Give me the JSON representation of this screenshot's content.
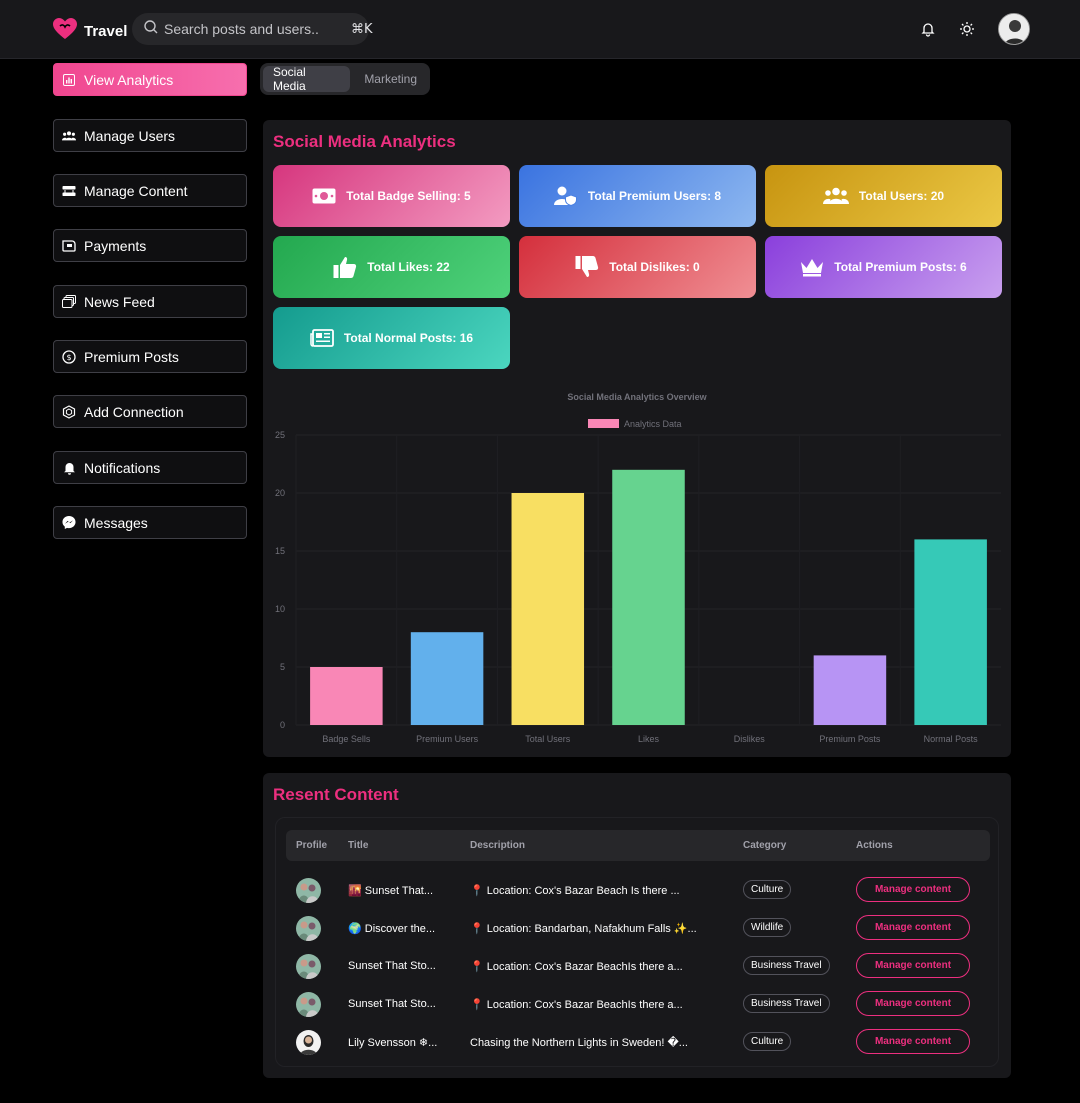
{
  "header": {
    "brand": "Travel",
    "search_placeholder": "Search posts and users..",
    "shortcut": "⌘K"
  },
  "sidebar": {
    "items": [
      {
        "label": "View Analytics",
        "icon": "chart-icon"
      },
      {
        "label": "Manage Users",
        "icon": "users-icon"
      },
      {
        "label": "Manage Content",
        "icon": "content-icon"
      },
      {
        "label": "Payments",
        "icon": "payments-icon"
      },
      {
        "label": "News Feed",
        "icon": "news-feed-icon"
      },
      {
        "label": "Premium Posts",
        "icon": "premium-icon"
      },
      {
        "label": "Add Connection",
        "icon": "connection-icon"
      },
      {
        "label": "Notifications",
        "icon": "bell-icon"
      },
      {
        "label": "Messages",
        "icon": "messenger-icon"
      }
    ]
  },
  "tabs": [
    "Social Media",
    "Marketing"
  ],
  "analytics": {
    "title": "Social Media Analytics",
    "stats": [
      {
        "label": "Total Badge Selling: 5",
        "icon": "money-icon"
      },
      {
        "label": "Total Premium Users: 8",
        "icon": "premium-user-icon"
      },
      {
        "label": "Total Users: 20",
        "icon": "users-icon"
      },
      {
        "label": "Total Likes: 22",
        "icon": "thumbs-up-icon"
      },
      {
        "label": "Total Dislikes: 0",
        "icon": "thumbs-down-icon"
      },
      {
        "label": "Total Premium Posts: 6",
        "icon": "crown-icon"
      },
      {
        "label": "Total Normal Posts: 16",
        "icon": "newspaper-icon"
      }
    ]
  },
  "chart_data": {
    "type": "bar",
    "title": "Social Media Analytics Overview",
    "legend": "Analytics Data",
    "categories": [
      "Badge Sells",
      "Premium Users",
      "Total Users",
      "Likes",
      "Dislikes",
      "Premium Posts",
      "Normal Posts"
    ],
    "values": [
      5,
      8,
      20,
      22,
      0,
      6,
      16
    ],
    "colors": [
      "#f987b6",
      "#62b0ec",
      "#f8df62",
      "#66d38f",
      "#f4a0a0",
      "#b794f4",
      "#36c9b7"
    ],
    "ylim": [
      0,
      25
    ],
    "yticks": [
      0,
      5,
      10,
      15,
      20,
      25
    ],
    "grid": true
  },
  "recent": {
    "title": "Resent Content",
    "headers": [
      "Profile",
      "Title",
      "Description",
      "Category",
      "Actions"
    ],
    "rows": [
      {
        "title": "🌇 Sunset That...",
        "description": "📍 Location: Cox's Bazar Beach Is there ...",
        "category": "Culture",
        "action": "Manage content"
      },
      {
        "title": "🌍 Discover the...",
        "description": "📍 Location: Bandarban, Nafakhum Falls ✨...",
        "category": "Wildlife",
        "action": "Manage content"
      },
      {
        "title": "Sunset That Sto...",
        "description": "📍 Location: Cox's Bazar BeachIs there a...",
        "category": "Business Travel",
        "action": "Manage content"
      },
      {
        "title": "Sunset That Sto...",
        "description": "📍 Location: Cox's Bazar BeachIs there a...",
        "category": "Business Travel",
        "action": "Manage content"
      },
      {
        "title": "Lily Svensson ❄...",
        "description": "Chasing the Northern Lights in Sweden! �...",
        "category": "Culture",
        "action": "Manage content"
      }
    ]
  }
}
